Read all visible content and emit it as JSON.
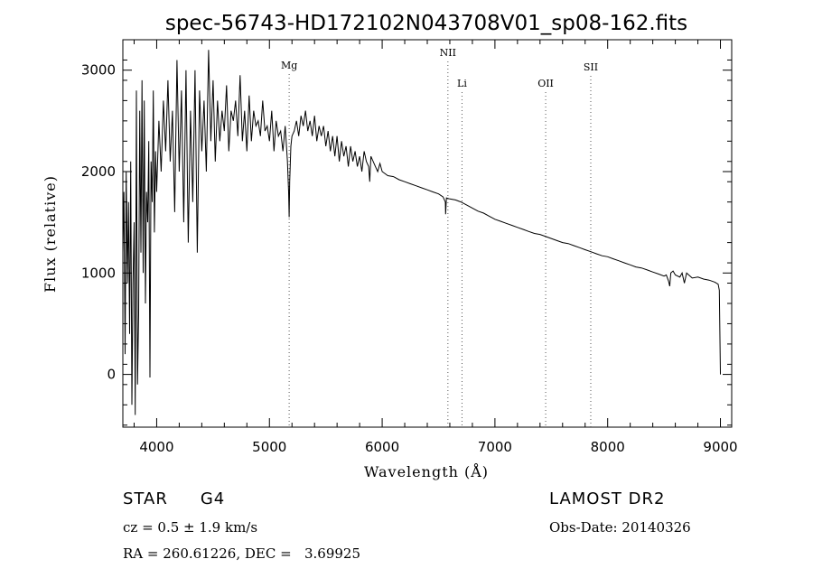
{
  "chart_data": {
    "type": "line",
    "title": "spec-56743-HD172102N043708V01_sp08-162.fits",
    "xlabel": "Wavelength (Å)",
    "ylabel": "Flux (relative)",
    "xlim": [
      3700,
      9100
    ],
    "ylim": [
      -520,
      3300
    ],
    "xticks": [
      4000,
      5000,
      6000,
      7000,
      8000,
      9000
    ],
    "yticks": [
      0,
      1000,
      2000,
      3000
    ],
    "grid": false,
    "legend": "none",
    "line_color": "#000000",
    "spectral_lines": [
      {
        "name": "Mg",
        "x": 5175
      },
      {
        "name": "NII",
        "x": 6583
      },
      {
        "name": "Li",
        "x": 6708
      },
      {
        "name": "OII",
        "x": 7450
      },
      {
        "name": "SII",
        "x": 7850
      }
    ],
    "series": [
      {
        "x": [
          3700,
          3710,
          3720,
          3730,
          3740,
          3750,
          3760,
          3770,
          3780,
          3790,
          3800,
          3810,
          3820,
          3830,
          3840,
          3850,
          3860,
          3870,
          3880,
          3890,
          3900,
          3910,
          3920,
          3930,
          3940,
          3950,
          3960,
          3970,
          3980,
          3990,
          4000,
          4020,
          4040,
          4060,
          4080,
          4100,
          4120,
          4140,
          4160,
          4180,
          4200,
          4220,
          4240,
          4260,
          4280,
          4300,
          4320,
          4340,
          4360,
          4380,
          4400,
          4420,
          4440,
          4460,
          4480,
          4500,
          4520,
          4540,
          4560,
          4580,
          4600,
          4620,
          4640,
          4660,
          4680,
          4700,
          4720,
          4740,
          4760,
          4780,
          4800,
          4820,
          4840,
          4860,
          4880,
          4900,
          4920,
          4940,
          4960,
          4980,
          5000,
          5020,
          5040,
          5060,
          5080,
          5100,
          5120,
          5140,
          5160,
          5170,
          5175,
          5180,
          5190,
          5200,
          5220,
          5240,
          5260,
          5280,
          5300,
          5320,
          5340,
          5360,
          5380,
          5400,
          5420,
          5440,
          5460,
          5480,
          5500,
          5520,
          5540,
          5560,
          5580,
          5600,
          5620,
          5640,
          5660,
          5680,
          5700,
          5720,
          5740,
          5760,
          5780,
          5800,
          5820,
          5840,
          5860,
          5880,
          5890,
          5900,
          5920,
          5940,
          5960,
          5980,
          6000,
          6050,
          6100,
          6150,
          6200,
          6250,
          6300,
          6350,
          6400,
          6450,
          6500,
          6540,
          6560,
          6563,
          6570,
          6600,
          6650,
          6700,
          6750,
          6800,
          6850,
          6900,
          6950,
          7000,
          7050,
          7100,
          7150,
          7200,
          7250,
          7300,
          7350,
          7400,
          7450,
          7500,
          7550,
          7600,
          7650,
          7700,
          7750,
          7800,
          7850,
          7900,
          7950,
          8000,
          8050,
          8100,
          8150,
          8200,
          8250,
          8300,
          8350,
          8400,
          8450,
          8500,
          8520,
          8540,
          8550,
          8560,
          8580,
          8600,
          8640,
          8660,
          8680,
          8700,
          8750,
          8800,
          8850,
          8900,
          8950,
          8980,
          8990,
          9000
        ],
        "values": [
          1200,
          1800,
          200,
          2000,
          900,
          1700,
          400,
          2100,
          -300,
          900,
          1500,
          -400,
          2800,
          -100,
          600,
          2600,
          1200,
          2900,
          1000,
          2700,
          700,
          1800,
          1500,
          2300,
          -30,
          2100,
          1700,
          2800,
          1400,
          2200,
          1800,
          2500,
          2000,
          2700,
          2200,
          2900,
          2100,
          2600,
          1600,
          3100,
          2000,
          2800,
          1500,
          3000,
          1300,
          2600,
          1700,
          3000,
          1200,
          2800,
          2200,
          2700,
          2000,
          3200,
          2300,
          2900,
          2100,
          2700,
          2300,
          2600,
          2400,
          2850,
          2200,
          2600,
          2500,
          2700,
          2350,
          2950,
          2300,
          2600,
          2200,
          2750,
          2300,
          2600,
          2450,
          2500,
          2350,
          2700,
          2400,
          2450,
          2300,
          2600,
          2200,
          2500,
          2350,
          2400,
          2200,
          2450,
          2100,
          1800,
          1550,
          1900,
          2250,
          2350,
          2400,
          2500,
          2350,
          2550,
          2450,
          2600,
          2400,
          2500,
          2350,
          2550,
          2300,
          2450,
          2350,
          2450,
          2250,
          2400,
          2200,
          2350,
          2150,
          2350,
          2100,
          2300,
          2150,
          2250,
          2050,
          2250,
          2100,
          2200,
          2050,
          2150,
          2000,
          2200,
          2100,
          2050,
          1900,
          2150,
          2100,
          2050,
          2000,
          2080,
          2000,
          1960,
          1950,
          1920,
          1900,
          1880,
          1860,
          1840,
          1820,
          1800,
          1780,
          1750,
          1700,
          1580,
          1740,
          1730,
          1720,
          1700,
          1670,
          1640,
          1610,
          1590,
          1560,
          1530,
          1510,
          1490,
          1470,
          1450,
          1430,
          1410,
          1390,
          1380,
          1360,
          1340,
          1320,
          1300,
          1290,
          1270,
          1250,
          1230,
          1210,
          1190,
          1170,
          1160,
          1140,
          1120,
          1100,
          1080,
          1060,
          1050,
          1030,
          1010,
          990,
          970,
          980,
          920,
          870,
          1000,
          1020,
          980,
          960,
          1000,
          900,
          1000,
          950,
          960,
          940,
          930,
          910,
          890,
          830,
          0
        ]
      }
    ]
  },
  "footer": {
    "object": "STAR",
    "subclass": "G4",
    "survey": "LAMOST DR2",
    "cz": "cz = 0.5 ± 1.9 km/s",
    "obs_date": "Obs-Date: 20140326",
    "coords": "RA = 260.61226, DEC =   3.69925"
  }
}
